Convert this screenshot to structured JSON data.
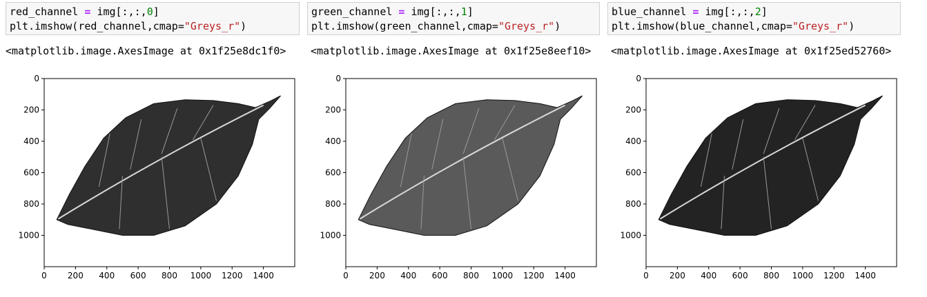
{
  "panels": [
    {
      "code_var": "red_channel",
      "code_channel": "0",
      "output_text": "<matplotlib.image.AxesImage at 0x1f25e8dc1f0>",
      "leaf_shade": "#2f2f2f"
    },
    {
      "code_var": "green_channel",
      "code_channel": "1",
      "output_text": "<matplotlib.image.AxesImage at 0x1f25e8eef10>",
      "leaf_shade": "#5a5a5a"
    },
    {
      "code_var": "blue_channel",
      "code_channel": "2",
      "output_text": "<matplotlib.image.AxesImage at 0x1f25ed52760>",
      "leaf_shade": "#232323"
    }
  ],
  "code": {
    "eq": " = ",
    "img_prefix": "img[:,:,",
    "close": "]",
    "call_prefix": "plt.imshow(",
    "cmap_kw": ",cmap=",
    "cmap_value": "\"Greys_r\"",
    "call_close": ")"
  },
  "axes": {
    "y_ticks": [
      "0",
      "200",
      "400",
      "600",
      "800",
      "1000"
    ],
    "x_ticks": [
      "0",
      "200",
      "400",
      "600",
      "800",
      "1000",
      "1200",
      "1400"
    ]
  }
}
